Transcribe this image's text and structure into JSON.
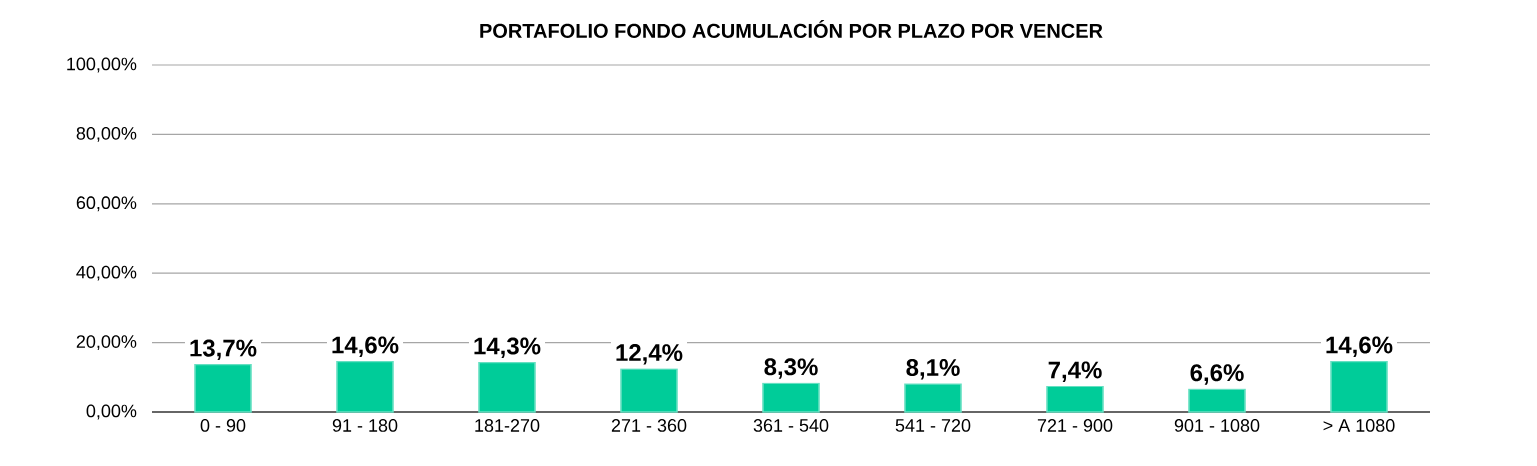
{
  "chart_data": {
    "type": "bar",
    "title": "PORTAFOLIO FONDO ACUMULACIÓN POR PLAZO POR VENCER",
    "categories": [
      "0 - 90",
      "91 - 180",
      "181-270",
      "271 - 360",
      "361 - 540",
      "541 - 720",
      "721 - 900",
      "901 - 1080",
      "> A 1080"
    ],
    "values": [
      13.7,
      14.6,
      14.3,
      12.4,
      8.3,
      8.1,
      7.4,
      6.6,
      14.6
    ],
    "value_labels": [
      "13,7%",
      "14,6%",
      "14,3%",
      "12,4%",
      "8,3%",
      "8,1%",
      "7,4%",
      "6,6%",
      "14,6%"
    ],
    "color": "#00cc99",
    "ylim": [
      0,
      100
    ],
    "yticks": [
      {
        "value": 0,
        "label": "0,00%"
      },
      {
        "value": 20,
        "label": "20,00%"
      },
      {
        "value": 40,
        "label": "40,00%"
      },
      {
        "value": 60,
        "label": "60,00%"
      },
      {
        "value": 80,
        "label": "80,00%"
      },
      {
        "value": 100,
        "label": "100,00%"
      }
    ],
    "grid": "y"
  }
}
